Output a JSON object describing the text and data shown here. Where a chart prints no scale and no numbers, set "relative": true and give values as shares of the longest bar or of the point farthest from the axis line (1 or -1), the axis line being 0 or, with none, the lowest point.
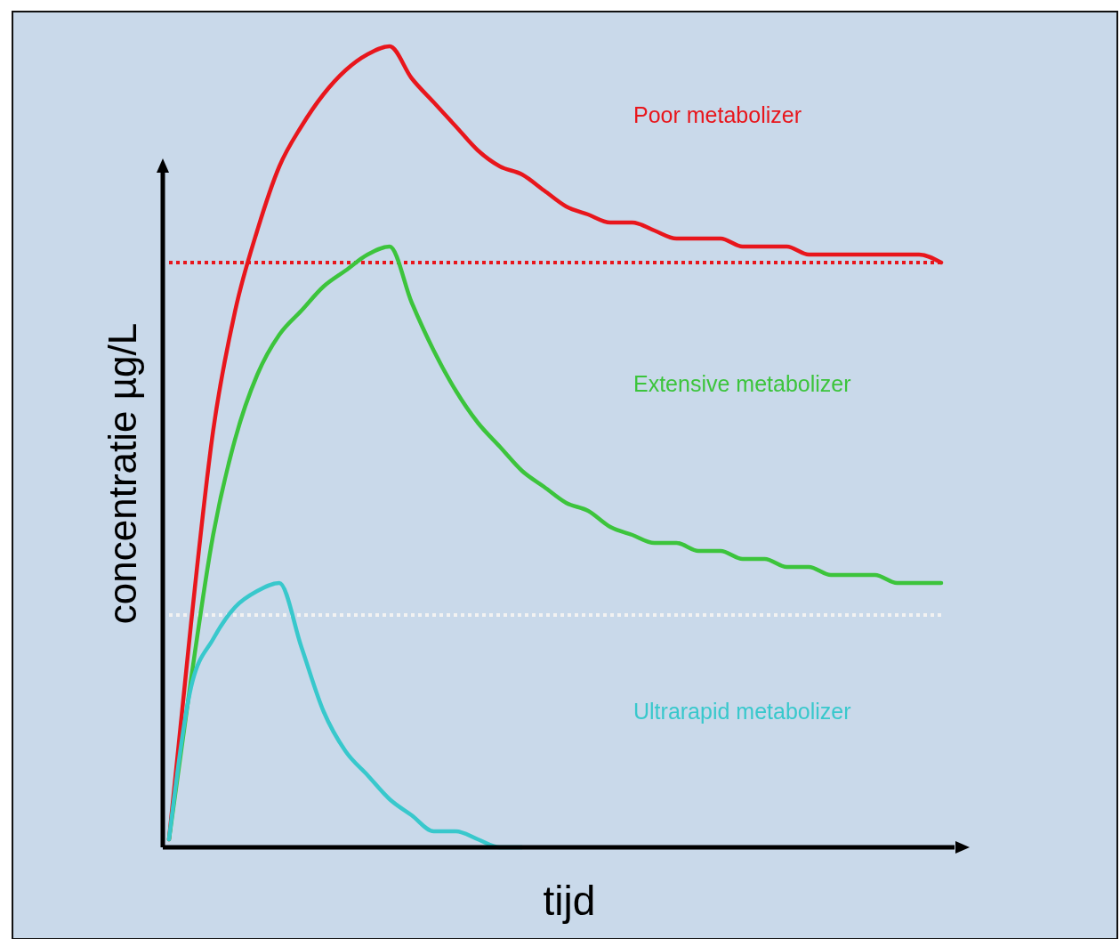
{
  "chart_data": {
    "type": "line",
    "relative": true,
    "xlabel": "tijd",
    "ylabel": "concentratie µg/L",
    "categories": [
      null,
      null,
      null,
      null,
      null,
      null,
      null,
      null,
      null,
      null,
      null,
      null,
      null,
      null,
      null,
      null,
      null,
      null,
      null,
      null,
      null,
      null,
      null,
      null,
      null,
      null,
      null,
      null,
      null,
      null,
      null,
      null,
      null,
      null,
      null,
      null
    ],
    "series": [
      {
        "name": "Poor metabolizer",
        "color": "#e8161c",
        "values": [
          0.01,
          0.28,
          0.52,
          0.67,
          0.77,
          0.85,
          0.9,
          0.94,
          0.97,
          0.99,
          1.0,
          0.96,
          0.93,
          0.9,
          0.87,
          0.85,
          0.84,
          0.82,
          0.8,
          0.79,
          0.78,
          0.78,
          0.77,
          0.76,
          0.76,
          0.76,
          0.75,
          0.75,
          0.75,
          0.74,
          0.74,
          0.74,
          0.74,
          0.74,
          0.74,
          0.73
        ]
      },
      {
        "name": "Extensive  metabolizer",
        "color": "#3cc43c",
        "values": [
          0.01,
          0.21,
          0.39,
          0.51,
          0.59,
          0.64,
          0.67,
          0.7,
          0.72,
          0.74,
          0.75,
          0.68,
          0.62,
          0.57,
          0.53,
          0.5,
          0.47,
          0.45,
          0.43,
          0.42,
          0.4,
          0.39,
          0.38,
          0.38,
          0.37,
          0.37,
          0.36,
          0.36,
          0.35,
          0.35,
          0.34,
          0.34,
          0.34,
          0.33,
          0.33,
          0.33
        ]
      },
      {
        "name": "Ultrarapid metabolizer",
        "color": "#38c8cc",
        "values": [
          0.01,
          0.2,
          0.26,
          0.3,
          0.32,
          0.33,
          0.25,
          0.17,
          0.12,
          0.09,
          0.06,
          0.04,
          0.02,
          0.02,
          0.01,
          0,
          0,
          null,
          null,
          null,
          null,
          null,
          null,
          null,
          null,
          null,
          null,
          null,
          null,
          null,
          null,
          null,
          null,
          null,
          null,
          null
        ]
      }
    ],
    "ref_lines": [
      {
        "axis": "y",
        "value": 0.73,
        "color": "#e8161c",
        "line_style": "dotted"
      },
      {
        "axis": "y",
        "value": 0.29,
        "color": "#f2f2f2",
        "line_style": "dotted"
      }
    ]
  }
}
